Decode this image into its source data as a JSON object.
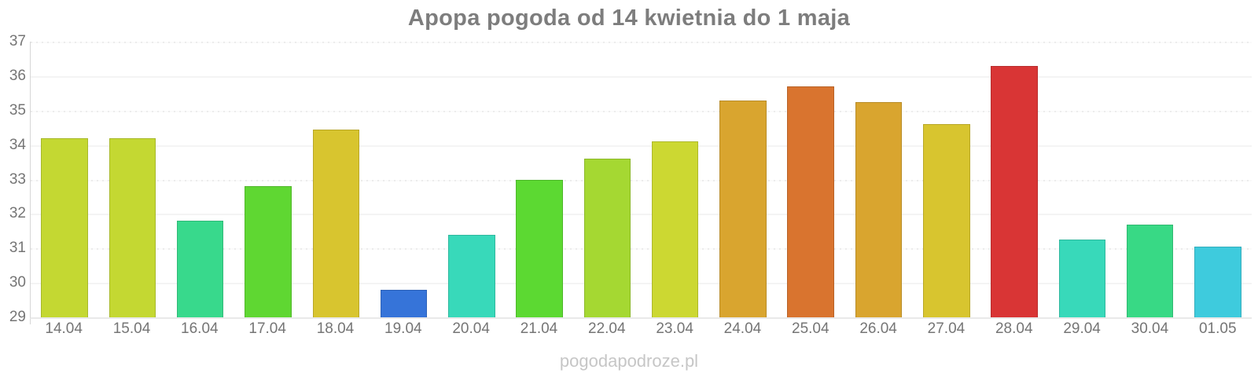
{
  "title": "Apopa pogoda od 14 kwietnia do 1 maja",
  "watermark": "pogodapodroze.pl",
  "colors": {
    "title_text": "#7d7d7d",
    "axis_label_text": "#757575",
    "watermark_text": "#c6c6c6",
    "gridline": "#f4f4f4",
    "axis_line": "#d6d6d6"
  },
  "chart_data": {
    "type": "bar",
    "title": "Apopa pogoda od 14 kwietnia do 1 maja",
    "xlabel": "",
    "ylabel": "",
    "ylim": [
      29,
      37
    ],
    "yticks": [
      29,
      30,
      31,
      32,
      33,
      34,
      35,
      36,
      37
    ],
    "grid": true,
    "legend": "none",
    "categories": [
      "14.04",
      "15.04",
      "16.04",
      "17.04",
      "18.04",
      "19.04",
      "20.04",
      "21.04",
      "22.04",
      "23.04",
      "24.04",
      "25.04",
      "26.04",
      "27.04",
      "28.04",
      "29.04",
      "30.04",
      "01.05"
    ],
    "values": [
      34.2,
      34.2,
      31.8,
      32.8,
      34.45,
      29.8,
      31.4,
      33.0,
      33.6,
      34.1,
      35.3,
      35.7,
      35.25,
      34.6,
      36.3,
      31.25,
      31.7,
      31.05
    ],
    "bar_colors": [
      "#c4d832",
      "#c4d832",
      "#38d98c",
      "#5fd732",
      "#d8c52f",
      "#3674d9",
      "#38d9ba",
      "#5cd932",
      "#a5d832",
      "#ccd832",
      "#d9a52f",
      "#d9742f",
      "#d9a52f",
      "#d8c52f",
      "#d93535",
      "#38d9ba",
      "#38d985",
      "#3ecbdd"
    ]
  }
}
